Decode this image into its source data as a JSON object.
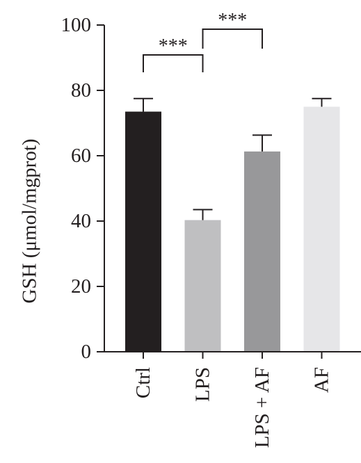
{
  "chart_data": {
    "type": "bar",
    "ylabel": "GSH (μmol/mgprot)",
    "xlabel": "",
    "ylim": [
      0,
      100
    ],
    "yticks": [
      0,
      20,
      40,
      60,
      80,
      100
    ],
    "categories": [
      "Ctrl",
      "LPS",
      "LPS + AF",
      "AF"
    ],
    "values": [
      73.5,
      40.3,
      61.3,
      75.0
    ],
    "errors": [
      4.0,
      3.2,
      5.0,
      2.5
    ],
    "colors": [
      "#231f20",
      "#bfbfc1",
      "#98989a",
      "#e6e6e8"
    ],
    "significance": [
      {
        "from": 0,
        "to": 1,
        "label": "***"
      },
      {
        "from": 1,
        "to": 2,
        "label": "***"
      }
    ],
    "grid": false
  }
}
